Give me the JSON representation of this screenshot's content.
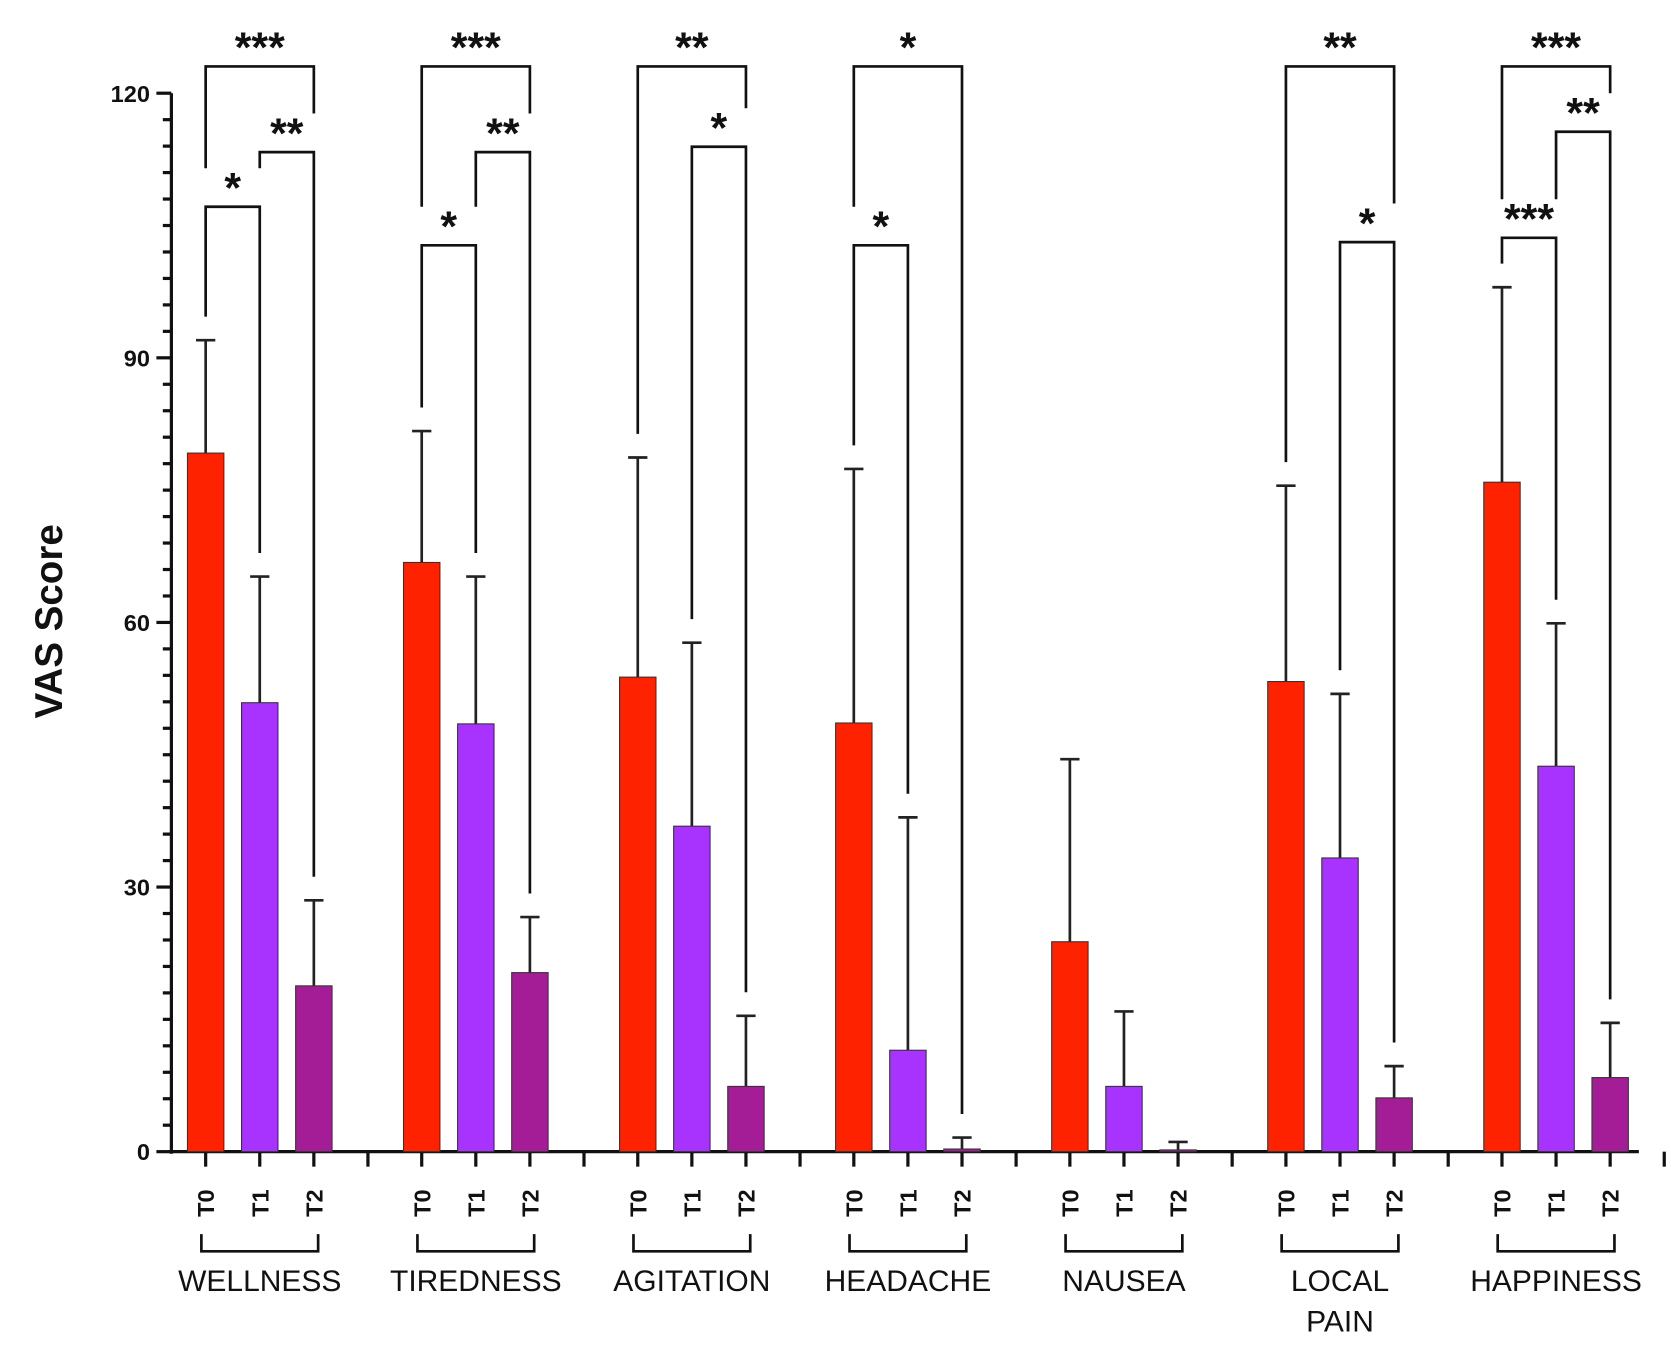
{
  "chart_data": {
    "type": "bar",
    "title": "",
    "xlabel": "",
    "ylabel": "VAS Score",
    "ylim": [
      0,
      120
    ],
    "yticks": [
      0,
      30,
      60,
      90,
      120
    ],
    "grid": false,
    "timepoints": [
      "T0",
      "T1",
      "T2"
    ],
    "colors": {
      "T0": "#ff2200",
      "T1": "#a833ff",
      "T2": "#a41d96"
    },
    "groups": [
      {
        "name": "WELLNESS",
        "values": [
          79.2,
          50.9,
          18.8
        ],
        "errors": [
          92.0,
          65.2,
          28.5
        ],
        "significance": [
          {
            "pair": [
              "T0",
              "T2"
            ],
            "label": "***",
            "level": 3
          },
          {
            "pair": [
              "T1",
              "T2"
            ],
            "label": "**",
            "level": 2
          },
          {
            "pair": [
              "T0",
              "T1"
            ],
            "label": "*",
            "level": 1
          }
        ]
      },
      {
        "name": "TIREDNESS",
        "values": [
          66.8,
          48.5,
          20.3
        ],
        "errors": [
          81.7,
          65.2,
          26.6
        ],
        "significance": [
          {
            "pair": [
              "T0",
              "T2"
            ],
            "label": "***",
            "level": 3
          },
          {
            "pair": [
              "T1",
              "T2"
            ],
            "label": "**",
            "level": 2
          },
          {
            "pair": [
              "T0",
              "T1"
            ],
            "label": "*",
            "level": 0
          }
        ]
      },
      {
        "name": "AGITATION",
        "values": [
          53.8,
          36.9,
          7.4
        ],
        "errors": [
          78.7,
          57.7,
          15.4
        ],
        "significance": [
          {
            "pair": [
              "T0",
              "T2"
            ],
            "label": "**",
            "level": 3
          },
          {
            "pair": [
              "T1",
              "T2"
            ],
            "label": "*",
            "level": 2
          }
        ]
      },
      {
        "name": "HEADACHE",
        "values": [
          48.6,
          11.5,
          0.3
        ],
        "errors": [
          77.4,
          37.9,
          1.6
        ],
        "significance": [
          {
            "pair": [
              "T0",
              "T2"
            ],
            "label": "*",
            "level": 3
          },
          {
            "pair": [
              "T0",
              "T1"
            ],
            "label": "*",
            "level": 0
          }
        ]
      },
      {
        "name": "NAUSEA",
        "values": [
          23.8,
          7.4,
          0.2
        ],
        "errors": [
          44.5,
          15.9,
          1.1
        ],
        "significance": []
      },
      {
        "name": "LOCAL PAIN",
        "lines": [
          "LOCAL",
          "PAIN"
        ],
        "values": [
          53.3,
          33.3,
          6.1
        ],
        "errors": [
          75.5,
          51.9,
          9.7
        ],
        "significance": [
          {
            "pair": [
              "T0",
              "T2"
            ],
            "label": "**",
            "level": 3
          },
          {
            "pair": [
              "T1",
              "T2"
            ],
            "label": "*",
            "level": 0
          }
        ]
      },
      {
        "name": "HAPPINESS",
        "values": [
          75.9,
          43.7,
          8.4
        ],
        "errors": [
          98.0,
          59.9,
          14.6
        ],
        "significance": [
          {
            "pair": [
              "T0",
              "T2"
            ],
            "label": "***",
            "level": 3
          },
          {
            "pair": [
              "T1",
              "T2"
            ],
            "label": "**",
            "level": 2
          },
          {
            "pair": [
              "T0",
              "T1"
            ],
            "label": "***",
            "level": 1
          }
        ]
      }
    ]
  }
}
